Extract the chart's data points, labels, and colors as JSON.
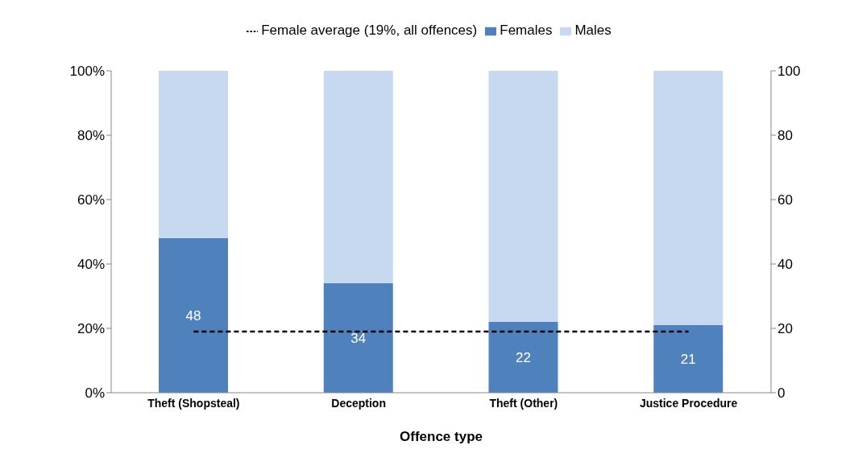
{
  "chart_data": {
    "type": "bar",
    "xlabel": "Offence type",
    "categories": [
      "Theft (Shopsteal)",
      "Deception",
      "Theft (Other)",
      "Justice Procedure"
    ],
    "stacked": true,
    "legend": "top",
    "grid": false,
    "series": [
      {
        "name": "Females",
        "color": "#4f81bd",
        "values": [
          48,
          34,
          22,
          21
        ],
        "value_labels": [
          "48",
          "34",
          "22",
          "21"
        ]
      },
      {
        "name": "Males",
        "color": "#c6d9f1",
        "values": [
          52,
          66,
          78,
          79
        ]
      },
      {
        "name": "Female average (19%, all offences)",
        "type": "line",
        "axis": "y2",
        "color": "#000000",
        "values": [
          19,
          19,
          19,
          19
        ],
        "line_style": "dashed",
        "marker": "none"
      }
    ],
    "ylim": [
      0,
      100
    ],
    "yticks": [
      {
        "value": 0,
        "label": "0%"
      },
      {
        "value": 20,
        "label": "20%"
      },
      {
        "value": 40,
        "label": "40%"
      },
      {
        "value": 60,
        "label": "60%"
      },
      {
        "value": 80,
        "label": "80%"
      },
      {
        "value": 100,
        "label": "100%"
      }
    ],
    "y2lim": [
      0,
      100
    ],
    "y2ticks": [
      0,
      20,
      40,
      60,
      80,
      100
    ]
  }
}
